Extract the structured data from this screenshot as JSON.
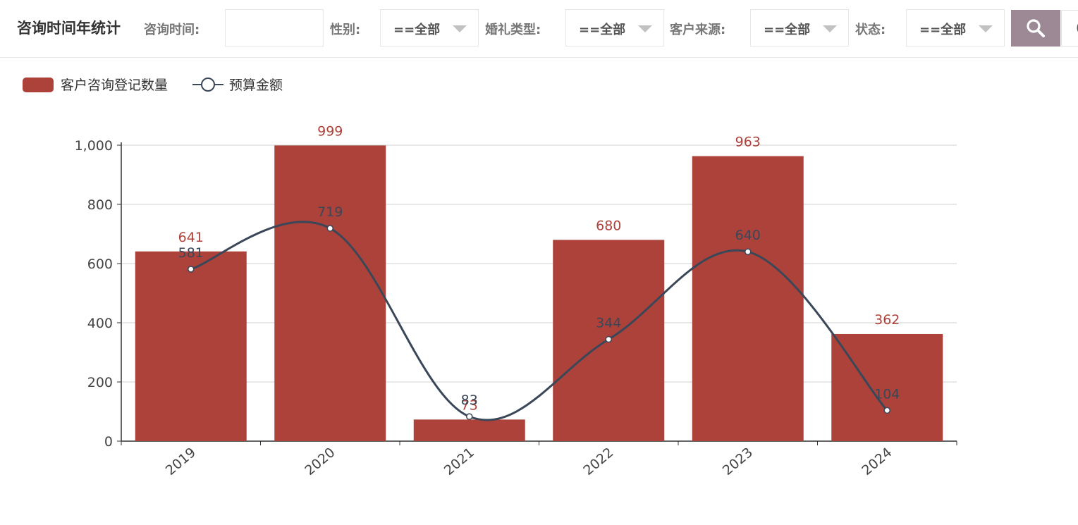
{
  "header": {
    "title": "咨询时间年统计",
    "filters": {
      "consult_time_label": "咨询时间:",
      "consult_time_value": "",
      "gender_label": "性别:",
      "gender_value": "==全部",
      "wedding_type_label": "婚礼类型:",
      "wedding_type_value": "==全部",
      "customer_source_label": "客户来源:",
      "customer_source_value": "==全部",
      "status_label": "状态:",
      "status_value": "==全部"
    },
    "search_icon": "search-icon"
  },
  "colors": {
    "bar": "#ad423a",
    "line": "#3a4758",
    "search_button": "#9d8996"
  },
  "chart_data": {
    "type": "bar",
    "categories": [
      "2019",
      "2020",
      "2021",
      "2022",
      "2023",
      "2024"
    ],
    "series": [
      {
        "name": "客户咨询登记数量",
        "type": "bar",
        "values": [
          641,
          999,
          73,
          680,
          963,
          362
        ]
      },
      {
        "name": "预算金额",
        "type": "line",
        "smooth": true,
        "values": [
          581,
          719,
          83,
          344,
          640,
          104
        ]
      }
    ],
    "ylim": [
      0,
      1000
    ],
    "yticks": [
      "0",
      "200",
      "400",
      "600",
      "800",
      "1,000"
    ],
    "grid": true,
    "legend": "top-left"
  }
}
